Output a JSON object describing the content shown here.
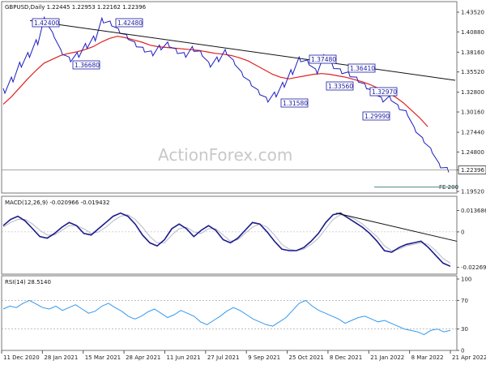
{
  "colors": {
    "price": "#1c1cc0",
    "ma": "#e02020",
    "trendline": "#111111",
    "macd": "#1a1a8c",
    "signal": "#b8b8c8",
    "rsi": "#3399ee",
    "label_border": "#1a1aa0",
    "grid": "#888888"
  },
  "watermark": "ActionForex.com",
  "chart_data": [
    {
      "type": "line",
      "panel": "price",
      "header": "GBPUSD,Daily  1.22445 1.22953 1.22162 1.22396",
      "y_range": [
        1.1952,
        1.445
      ],
      "y_ticks": [
        "1.43520",
        "1.40880",
        "1.38160",
        "1.35520",
        "1.32800",
        "1.30160",
        "1.27440",
        "1.24800",
        "1.22396",
        "1.19520"
      ],
      "y_tick_values": [
        1.4352,
        1.4088,
        1.3816,
        1.3552,
        1.328,
        1.3016,
        1.2744,
        1.248,
        1.22396,
        1.1952
      ],
      "current_price": "1.22396",
      "fe_label": "FE 200",
      "x_ticks": [
        "11 Dec 2020",
        "28 Jan 2021",
        "15 Mar 2021",
        "28 Apr 2021",
        "11 Jun 2021",
        "27 Jul 2021",
        "9 Sep 2021",
        "25 Oct 2021",
        "8 Dec 2021",
        "21 Jan 2022",
        "8 Mar 2022",
        "21 Apr 2022"
      ],
      "series": [
        {
          "values": [
            1.33,
            1.345,
            1.365,
            1.378,
            1.395,
            1.425,
            1.405,
            1.382,
            1.372,
            1.378,
            1.39,
            1.4,
            1.424,
            1.42,
            1.41,
            1.402,
            1.392,
            1.385,
            1.38,
            1.388,
            1.392,
            1.383,
            1.378,
            1.386,
            1.38,
            1.365,
            1.372,
            1.382,
            1.368,
            1.352,
            1.34,
            1.328,
            1.318,
            1.325,
            1.338,
            1.355,
            1.372,
            1.368,
            1.356,
            1.375,
            1.363,
            1.356,
            1.352,
            1.345,
            1.336,
            1.328,
            1.318,
            1.32,
            1.308,
            1.3,
            1.278,
            1.264,
            1.25,
            1.23,
            1.224
          ]
        },
        {
          "values": [
            1.312,
            1.322,
            1.334,
            1.346,
            1.357,
            1.367,
            1.372,
            1.377,
            1.38,
            1.382,
            1.385,
            1.389,
            1.395,
            1.4,
            1.403,
            1.401,
            1.398,
            1.395,
            1.391,
            1.389,
            1.388,
            1.387,
            1.386,
            1.385,
            1.384,
            1.382,
            1.38,
            1.379,
            1.377,
            1.374,
            1.37,
            1.364,
            1.358,
            1.352,
            1.348,
            1.346,
            1.348,
            1.35,
            1.352,
            1.353,
            1.352,
            1.35,
            1.348,
            1.345,
            1.342,
            1.338,
            1.333,
            1.328,
            1.322,
            1.314,
            1.304,
            1.294,
            1.282
          ]
        }
      ],
      "trendline": [
        [
          1.424,
          0.06
        ],
        [
          1.344,
          1.0
        ]
      ],
      "fe_line_value": 1.201,
      "annotations": [
        {
          "text": "1.42400",
          "value": 1.424
        },
        {
          "text": "1.36680",
          "value": 1.3668
        },
        {
          "text": "1.42480",
          "value": 1.4248
        },
        {
          "text": "1.37480",
          "value": 1.3748
        },
        {
          "text": "1.36410",
          "value": 1.3641
        },
        {
          "text": "1.33560",
          "value": 1.3356
        },
        {
          "text": "1.31580",
          "value": 1.3158
        },
        {
          "text": "1.32970",
          "value": 1.3297
        },
        {
          "text": "1.29990",
          "value": 1.2999
        }
      ]
    },
    {
      "type": "line",
      "panel": "macd",
      "header": "MACD(12,26,9) -0.020966 -0.019432",
      "y_range": [
        -0.026,
        0.0155
      ],
      "y_ticks": [
        "0.013686",
        "0",
        "-0.022698"
      ],
      "y_tick_values": [
        0.013686,
        0,
        -0.022698
      ],
      "series": [
        {
          "values": [
            0.004,
            0.008,
            0.01,
            0.007,
            0.002,
            -0.003,
            -0.004,
            -0.001,
            0.003,
            0.006,
            0.004,
            -0.001,
            -0.002,
            0.002,
            0.006,
            0.01,
            0.012,
            0.01,
            0.005,
            -0.002,
            -0.007,
            -0.009,
            -0.005,
            0.002,
            0.005,
            0.002,
            -0.003,
            0.001,
            0.004,
            0.001,
            -0.005,
            -0.007,
            -0.004,
            0.001,
            0.006,
            0.005,
            0.0,
            -0.006,
            -0.011,
            -0.012,
            -0.012,
            -0.01,
            -0.006,
            -0.001,
            0.006,
            0.011,
            0.012,
            0.009,
            0.006,
            0.003,
            -0.001,
            -0.006,
            -0.012,
            -0.013,
            -0.01,
            -0.008,
            -0.007,
            -0.006,
            -0.01,
            -0.015,
            -0.02,
            -0.022
          ]
        },
        {
          "values": [
            0.003,
            0.006,
            0.008,
            0.008,
            0.005,
            0.001,
            -0.002,
            -0.002,
            0.001,
            0.004,
            0.004,
            0.002,
            -0.001,
            0.0,
            0.003,
            0.007,
            0.01,
            0.011,
            0.008,
            0.003,
            -0.003,
            -0.007,
            -0.007,
            -0.002,
            0.002,
            0.003,
            0.0,
            -0.001,
            0.002,
            0.002,
            -0.002,
            -0.006,
            -0.005,
            -0.001,
            0.003,
            0.005,
            0.003,
            -0.002,
            -0.008,
            -0.011,
            -0.012,
            -0.011,
            -0.008,
            -0.004,
            0.002,
            0.008,
            0.011,
            0.01,
            0.008,
            0.005,
            0.001,
            -0.003,
            -0.009,
            -0.012,
            -0.011,
            -0.009,
            -0.008,
            -0.007,
            -0.008,
            -0.012,
            -0.017,
            -0.02
          ]
        }
      ],
      "trendline": [
        [
          0.012,
          0.745
        ],
        [
          -0.006,
          1.0
        ]
      ]
    },
    {
      "type": "line",
      "panel": "rsi",
      "header": "RSI(14) 28.5140",
      "y_range": [
        0,
        100
      ],
      "y_ticks": [
        "100",
        "70",
        "30",
        "0"
      ],
      "y_tick_values": [
        100,
        70,
        30,
        0
      ],
      "series": [
        {
          "values": [
            58,
            62,
            60,
            66,
            70,
            65,
            60,
            58,
            62,
            56,
            60,
            64,
            58,
            52,
            55,
            62,
            66,
            60,
            55,
            48,
            44,
            48,
            54,
            58,
            52,
            46,
            50,
            56,
            52,
            48,
            40,
            36,
            42,
            48,
            55,
            60,
            56,
            50,
            44,
            40,
            36,
            34,
            40,
            46,
            56,
            66,
            70,
            62,
            56,
            52,
            48,
            44,
            38,
            42,
            46,
            48,
            44,
            40,
            42,
            38,
            34,
            30,
            28,
            26,
            22,
            28,
            30,
            26,
            28
          ]
        }
      ]
    }
  ]
}
